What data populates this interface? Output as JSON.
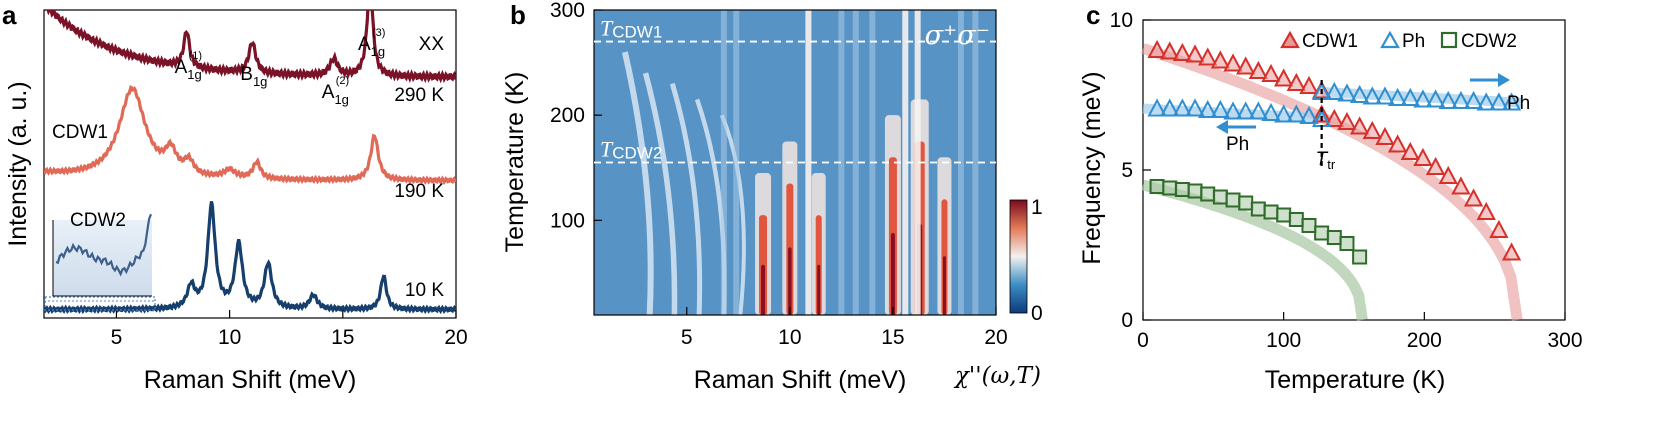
{
  "colors": {
    "c290": "#7a1228",
    "c190": "#e06a57",
    "c10": "#173f6e",
    "cdw1": "#d7302a",
    "ph": "#2f8fd1",
    "cdw2": "#2f6b2a",
    "cdw1_fill": "#e79a9a",
    "ph_fill": "#9fcbe9",
    "cdw2_fill": "#a8c8a2"
  },
  "chart_data": [
    {
      "type": "line",
      "panel": "a",
      "xlabel": "Raman Shift (meV)",
      "ylabel": "Intensity (a. u.)",
      "xlim": [
        1.8,
        20
      ],
      "xticks": [
        "5",
        "10",
        "15",
        "20"
      ],
      "channel": "XX",
      "series": [
        {
          "name": "290 K",
          "baseline": 8.6,
          "peaks": [
            {
              "x": 8.1,
              "h": 1.3,
              "w": 0.15
            },
            {
              "x": 11.0,
              "h": 1.1,
              "w": 0.18
            },
            {
              "x": 14.6,
              "h": 0.6,
              "w": 0.2
            },
            {
              "x": 16.2,
              "h": 3.4,
              "w": 0.15
            }
          ]
        },
        {
          "name": "190 K",
          "baseline": 4.9,
          "peaks": [
            {
              "x": 5.7,
              "h": 3.2,
              "w": 0.7
            },
            {
              "x": 7.4,
              "h": 0.8,
              "w": 0.3
            },
            {
              "x": 8.2,
              "h": 0.5,
              "w": 0.25
            },
            {
              "x": 10.0,
              "h": 0.3,
              "w": 0.3
            },
            {
              "x": 11.2,
              "h": 0.6,
              "w": 0.2
            },
            {
              "x": 16.4,
              "h": 1.6,
              "w": 0.2
            }
          ]
        },
        {
          "name": "10 K",
          "baseline": 0.3,
          "peaks": [
            {
              "x": 8.3,
              "h": 0.8,
              "w": 0.2
            },
            {
              "x": 9.2,
              "h": 3.7,
              "w": 0.2
            },
            {
              "x": 10.4,
              "h": 2.3,
              "w": 0.2
            },
            {
              "x": 11.7,
              "h": 1.6,
              "w": 0.2
            },
            {
              "x": 13.7,
              "h": 0.5,
              "w": 0.2
            },
            {
              "x": 16.8,
              "h": 1.2,
              "w": 0.15
            }
          ]
        }
      ],
      "peak_labels": [
        {
          "base": "A",
          "sub": "1g",
          "sup": "(1)",
          "x": 8.1
        },
        {
          "base": "B",
          "sub": "1g",
          "sup": "",
          "x": 11.0
        },
        {
          "base": "A",
          "sub": "1g",
          "sup": "(2)",
          "x": 14.6
        },
        {
          "base": "A",
          "sub": "1g",
          "sup": "(3)",
          "x": 16.2
        }
      ],
      "annotations": [
        "CDW1",
        "CDW2"
      ]
    },
    {
      "type": "heatmap",
      "panel": "b",
      "xlabel": "Raman Shift (meV)",
      "ylabel": "Temperature (K)",
      "xlim": [
        0.5,
        20
      ],
      "ylim": [
        10,
        300
      ],
      "xticks": [
        "5",
        "10",
        "15",
        "20"
      ],
      "yticks": [
        "100",
        "200",
        "300"
      ],
      "colorbar": {
        "min": 0,
        "max": 1,
        "ticks": [
          "0",
          "1"
        ],
        "label": "χ''(ω,T)"
      },
      "polarization": "σ⁺σ⁻",
      "lines": [
        {
          "name": "TCDW1",
          "main": "T",
          "sub": "CDW1",
          "T": 270
        },
        {
          "name": "TCDW2",
          "main": "T",
          "sub": "CDW2",
          "T": 155
        }
      ]
    },
    {
      "type": "scatter",
      "panel": "c",
      "xlabel": "Temperature (K)",
      "ylabel": "Frequency (meV)",
      "xlim": [
        0,
        300
      ],
      "ylim": [
        0,
        10
      ],
      "xticks": [
        "0",
        "100",
        "200",
        "300"
      ],
      "yticks": [
        "0",
        "5",
        "10"
      ],
      "legend": [
        "CDW1",
        "Ph",
        "CDW2"
      ],
      "transition": {
        "main": "T",
        "sub": "tr",
        "T": 127
      },
      "arrow_labels": [
        "Ph",
        "Ph"
      ],
      "series": [
        {
          "name": "CDW1 (upper branch)",
          "x": [
            10,
            19,
            28,
            37,
            46,
            55,
            64,
            73,
            82,
            91,
            100,
            109,
            118,
            127
          ],
          "y": [
            9.0,
            8.95,
            8.9,
            8.85,
            8.75,
            8.65,
            8.55,
            8.45,
            8.3,
            8.2,
            8.05,
            7.9,
            7.8,
            7.65
          ]
        },
        {
          "name": "CDW1 (lower branch)",
          "x": [
            127,
            136,
            145,
            154,
            163,
            172,
            181,
            190,
            199,
            208,
            217,
            226,
            235,
            244,
            253,
            262
          ],
          "y": [
            6.85,
            6.7,
            6.6,
            6.45,
            6.3,
            6.1,
            5.85,
            5.6,
            5.4,
            5.1,
            4.8,
            4.45,
            4.05,
            3.6,
            3.0,
            2.25
          ]
        },
        {
          "name": "Ph (lower branch)",
          "x": [
            10,
            19,
            28,
            37,
            46,
            55,
            64,
            73,
            82,
            91,
            100,
            109,
            118,
            127
          ],
          "y": [
            7.05,
            7.05,
            7.05,
            7.05,
            7.0,
            7.0,
            6.95,
            6.95,
            6.95,
            6.9,
            6.85,
            6.85,
            6.8,
            6.7
          ]
        },
        {
          "name": "Ph (upper branch)",
          "x": [
            127,
            136,
            145,
            154,
            163,
            172,
            181,
            190,
            199,
            208,
            217,
            226,
            235,
            244,
            253,
            262
          ],
          "y": [
            7.6,
            7.6,
            7.55,
            7.5,
            7.45,
            7.45,
            7.4,
            7.4,
            7.35,
            7.35,
            7.3,
            7.3,
            7.3,
            7.25,
            7.25,
            7.25
          ]
        },
        {
          "name": "CDW2",
          "x": [
            10,
            19,
            28,
            37,
            46,
            55,
            64,
            73,
            82,
            91,
            100,
            109,
            118,
            127,
            136,
            145,
            154
          ],
          "y": [
            4.45,
            4.4,
            4.35,
            4.3,
            4.2,
            4.1,
            4.0,
            3.9,
            3.7,
            3.6,
            3.5,
            3.35,
            3.15,
            2.9,
            2.75,
            2.55,
            2.1
          ]
        }
      ]
    }
  ]
}
